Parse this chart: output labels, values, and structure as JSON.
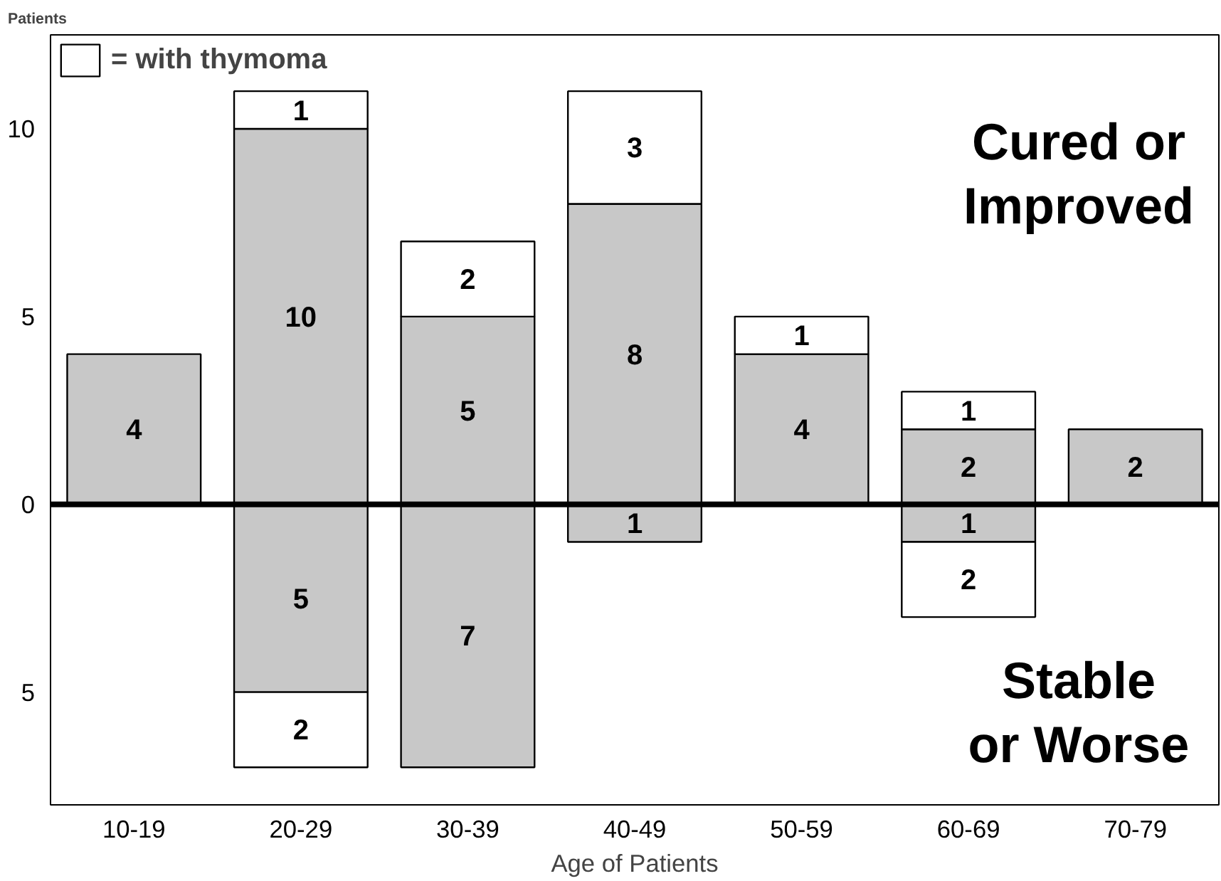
{
  "chart_data": {
    "type": "bar",
    "stacked": true,
    "ylabel": "Patients",
    "xlabel": "Age of Patients",
    "categories": [
      "10-19",
      "20-29",
      "30-39",
      "40-49",
      "50-59",
      "60-69",
      "70-79"
    ],
    "series": [
      {
        "color": "#c8c8c8",
        "values": [
          4,
          10,
          5,
          8,
          4,
          2,
          2
        ],
        "value_labels": [
          "4",
          "10",
          "5",
          "8",
          "4",
          "2",
          "2"
        ]
      },
      {
        "name": "= with thymoma",
        "color": "#ffffff",
        "values": [
          null,
          1,
          2,
          3,
          1,
          1,
          null
        ],
        "value_labels": [
          null,
          "1",
          "2",
          "3",
          "1",
          "1",
          null
        ]
      },
      {
        "color": "#c8c8c8",
        "values": [
          null,
          -5,
          -7,
          -1,
          null,
          -1,
          null
        ]
      },
      {
        "color": "#ffffff",
        "values": [
          null,
          -2,
          null,
          null,
          null,
          -2,
          null
        ]
      }
    ],
    "ylim": [
      -8,
      12.5
    ],
    "yticks": [
      {
        "value": -5,
        "label": "5"
      },
      0,
      5,
      10
    ],
    "ref_lines": [
      {
        "axis": "y",
        "value": 0,
        "color": "#000000"
      }
    ],
    "annotations": [
      "Cured or Improved",
      "Stable or Worse",
      "5",
      "7",
      "1",
      "1",
      "2",
      "2"
    ],
    "legend": "top left",
    "grid": false
  }
}
